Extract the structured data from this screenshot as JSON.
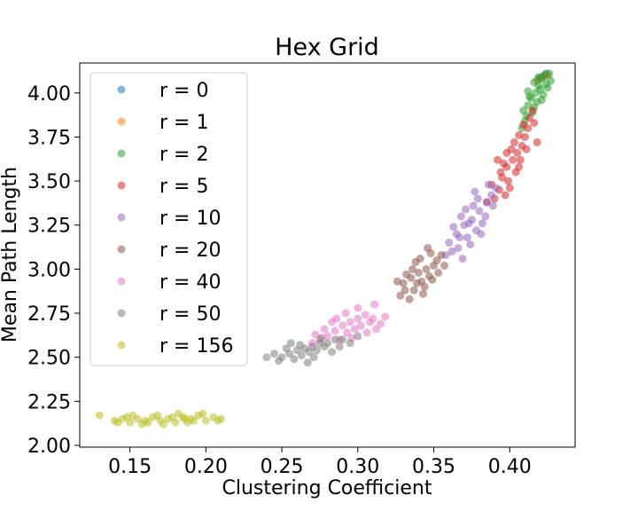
{
  "chart_data": {
    "type": "scatter",
    "title": "Hex Grid",
    "xlabel": "Clustering Coefficient",
    "ylabel": "Mean Path Length",
    "xlim": [
      0.117,
      0.443
    ],
    "ylim": [
      1.99,
      4.17
    ],
    "xticks": [
      0.15,
      0.2,
      0.25,
      0.3,
      0.35,
      0.4
    ],
    "xtick_labels": [
      "0.15",
      "0.20",
      "0.25",
      "0.30",
      "0.35",
      "0.40"
    ],
    "yticks": [
      2.0,
      2.25,
      2.5,
      2.75,
      3.0,
      3.25,
      3.5,
      3.75,
      4.0
    ],
    "ytick_labels": [
      "2.00",
      "2.25",
      "2.50",
      "2.75",
      "3.00",
      "3.25",
      "3.50",
      "3.75",
      "4.00"
    ],
    "grid": false,
    "legend_position": "upper-left",
    "series": [
      {
        "name": "r = 0",
        "color": "#1f77b4",
        "points": [
          [
            0.423,
            4.1
          ],
          [
            0.421,
            4.09
          ],
          [
            0.424,
            4.11
          ],
          [
            0.419,
            4.08
          ]
        ]
      },
      {
        "name": "r = 1",
        "color": "#ff7f0e",
        "points": [
          [
            0.422,
            4.09
          ],
          [
            0.418,
            4.07
          ],
          [
            0.425,
            4.1
          ]
        ]
      },
      {
        "name": "r = 2",
        "color": "#2ca02c",
        "points": [
          [
            0.426,
            4.11
          ],
          [
            0.423,
            4.1
          ],
          [
            0.421,
            4.08
          ],
          [
            0.419,
            4.04
          ],
          [
            0.417,
            4.0
          ],
          [
            0.414,
            3.97
          ],
          [
            0.412,
            3.93
          ],
          [
            0.409,
            3.9
          ],
          [
            0.416,
            4.06
          ],
          [
            0.424,
            4.05
          ],
          [
            0.411,
            3.87
          ],
          [
            0.418,
            3.95
          ],
          [
            0.415,
            3.89
          ],
          [
            0.42,
            4.02
          ],
          [
            0.413,
            3.98
          ],
          [
            0.422,
            3.99
          ],
          [
            0.427,
            4.07
          ],
          [
            0.41,
            3.84
          ],
          [
            0.416,
            3.92
          ],
          [
            0.419,
            4.09
          ],
          [
            0.408,
            3.8
          ],
          [
            0.425,
            4.03
          ],
          [
            0.412,
            4.01
          ],
          [
            0.421,
            3.96
          ]
        ]
      },
      {
        "name": "r = 5",
        "color": "#d62728",
        "points": [
          [
            0.395,
            3.52
          ],
          [
            0.398,
            3.58
          ],
          [
            0.402,
            3.62
          ],
          [
            0.405,
            3.66
          ],
          [
            0.408,
            3.7
          ],
          [
            0.41,
            3.75
          ],
          [
            0.412,
            3.8
          ],
          [
            0.399,
            3.5
          ],
          [
            0.404,
            3.55
          ],
          [
            0.401,
            3.68
          ],
          [
            0.396,
            3.6
          ],
          [
            0.407,
            3.62
          ],
          [
            0.393,
            3.45
          ],
          [
            0.39,
            3.4
          ],
          [
            0.397,
            3.42
          ],
          [
            0.413,
            3.86
          ],
          [
            0.415,
            3.9
          ],
          [
            0.409,
            3.82
          ],
          [
            0.403,
            3.72
          ],
          [
            0.406,
            3.58
          ],
          [
            0.4,
            3.46
          ],
          [
            0.411,
            3.68
          ],
          [
            0.394,
            3.55
          ],
          [
            0.388,
            3.48
          ],
          [
            0.416,
            3.83
          ],
          [
            0.392,
            3.62
          ],
          [
            0.385,
            3.38
          ],
          [
            0.418,
            3.72
          ],
          [
            0.406,
            3.76
          ],
          [
            0.398,
            3.66
          ]
        ]
      },
      {
        "name": "r = 10",
        "color": "#9467bd",
        "points": [
          [
            0.36,
            3.15
          ],
          [
            0.365,
            3.2
          ],
          [
            0.37,
            3.25
          ],
          [
            0.375,
            3.28
          ],
          [
            0.38,
            3.33
          ],
          [
            0.385,
            3.38
          ],
          [
            0.372,
            3.18
          ],
          [
            0.368,
            3.3
          ],
          [
            0.378,
            3.22
          ],
          [
            0.382,
            3.26
          ],
          [
            0.362,
            3.1
          ],
          [
            0.358,
            3.08
          ],
          [
            0.388,
            3.42
          ],
          [
            0.391,
            3.46
          ],
          [
            0.376,
            3.36
          ],
          [
            0.366,
            3.12
          ],
          [
            0.384,
            3.3
          ],
          [
            0.371,
            3.34
          ],
          [
            0.379,
            3.4
          ],
          [
            0.374,
            3.14
          ],
          [
            0.386,
            3.48
          ],
          [
            0.363,
            3.24
          ],
          [
            0.381,
            3.2
          ],
          [
            0.369,
            3.06
          ],
          [
            0.377,
            3.44
          ],
          [
            0.373,
            3.26
          ],
          [
            0.367,
            3.18
          ],
          [
            0.389,
            3.36
          ]
        ]
      },
      {
        "name": "r = 20",
        "color": "#8c564b",
        "points": [
          [
            0.33,
            2.92
          ],
          [
            0.335,
            2.95
          ],
          [
            0.34,
            2.98
          ],
          [
            0.345,
            3.0
          ],
          [
            0.35,
            3.02
          ],
          [
            0.337,
            2.88
          ],
          [
            0.342,
            2.93
          ],
          [
            0.347,
            2.96
          ],
          [
            0.332,
            2.97
          ],
          [
            0.328,
            2.85
          ],
          [
            0.352,
            3.05
          ],
          [
            0.355,
            3.08
          ],
          [
            0.338,
            3.04
          ],
          [
            0.344,
            2.9
          ],
          [
            0.349,
            2.94
          ],
          [
            0.334,
            2.83
          ],
          [
            0.341,
            3.06
          ],
          [
            0.353,
            2.98
          ],
          [
            0.326,
            2.93
          ],
          [
            0.346,
            3.12
          ],
          [
            0.339,
            2.92
          ],
          [
            0.357,
            3.02
          ],
          [
            0.331,
            2.88
          ],
          [
            0.348,
            3.09
          ],
          [
            0.343,
            2.86
          ],
          [
            0.336,
            3.0
          ]
        ]
      },
      {
        "name": "r = 40",
        "color": "#e377c2",
        "points": [
          [
            0.28,
            2.62
          ],
          [
            0.285,
            2.65
          ],
          [
            0.29,
            2.68
          ],
          [
            0.295,
            2.7
          ],
          [
            0.3,
            2.72
          ],
          [
            0.305,
            2.74
          ],
          [
            0.31,
            2.72
          ],
          [
            0.288,
            2.6
          ],
          [
            0.293,
            2.64
          ],
          [
            0.298,
            2.66
          ],
          [
            0.275,
            2.6
          ],
          [
            0.27,
            2.58
          ],
          [
            0.302,
            2.68
          ],
          [
            0.308,
            2.7
          ],
          [
            0.315,
            2.69
          ],
          [
            0.283,
            2.7
          ],
          [
            0.292,
            2.75
          ],
          [
            0.312,
            2.66
          ],
          [
            0.278,
            2.66
          ],
          [
            0.296,
            2.61
          ],
          [
            0.318,
            2.73
          ],
          [
            0.306,
            2.64
          ],
          [
            0.286,
            2.72
          ],
          [
            0.3,
            2.78
          ],
          [
            0.272,
            2.63
          ],
          [
            0.311,
            2.8
          ]
        ]
      },
      {
        "name": "r = 50",
        "color": "#7f7f7f",
        "points": [
          [
            0.25,
            2.5
          ],
          [
            0.255,
            2.52
          ],
          [
            0.26,
            2.54
          ],
          [
            0.265,
            2.55
          ],
          [
            0.27,
            2.56
          ],
          [
            0.275,
            2.58
          ],
          [
            0.28,
            2.58
          ],
          [
            0.285,
            2.6
          ],
          [
            0.258,
            2.49
          ],
          [
            0.263,
            2.51
          ],
          [
            0.268,
            2.53
          ],
          [
            0.273,
            2.54
          ],
          [
            0.245,
            2.52
          ],
          [
            0.24,
            2.5
          ],
          [
            0.278,
            2.56
          ],
          [
            0.29,
            2.6
          ],
          [
            0.295,
            2.58
          ],
          [
            0.262,
            2.57
          ],
          [
            0.267,
            2.47
          ],
          [
            0.253,
            2.55
          ],
          [
            0.283,
            2.53
          ],
          [
            0.276,
            2.61
          ],
          [
            0.248,
            2.48
          ],
          [
            0.288,
            2.56
          ],
          [
            0.256,
            2.58
          ],
          [
            0.271,
            2.5
          ],
          [
            0.3,
            2.62
          ]
        ]
      },
      {
        "name": "r = 156",
        "color": "#bcbd22",
        "points": [
          [
            0.14,
            2.14
          ],
          [
            0.145,
            2.15
          ],
          [
            0.15,
            2.13
          ],
          [
            0.155,
            2.15
          ],
          [
            0.16,
            2.14
          ],
          [
            0.165,
            2.16
          ],
          [
            0.17,
            2.14
          ],
          [
            0.175,
            2.15
          ],
          [
            0.18,
            2.13
          ],
          [
            0.185,
            2.16
          ],
          [
            0.19,
            2.15
          ],
          [
            0.195,
            2.17
          ],
          [
            0.2,
            2.14
          ],
          [
            0.205,
            2.16
          ],
          [
            0.21,
            2.15
          ],
          [
            0.13,
            2.17
          ],
          [
            0.158,
            2.12
          ],
          [
            0.168,
            2.17
          ],
          [
            0.178,
            2.16
          ],
          [
            0.188,
            2.13
          ],
          [
            0.148,
            2.16
          ],
          [
            0.172,
            2.12
          ],
          [
            0.182,
            2.18
          ],
          [
            0.162,
            2.13
          ],
          [
            0.152,
            2.17
          ],
          [
            0.192,
            2.14
          ],
          [
            0.198,
            2.18
          ],
          [
            0.142,
            2.13
          ],
          [
            0.208,
            2.14
          ],
          [
            0.186,
            2.15
          ]
        ]
      }
    ]
  }
}
